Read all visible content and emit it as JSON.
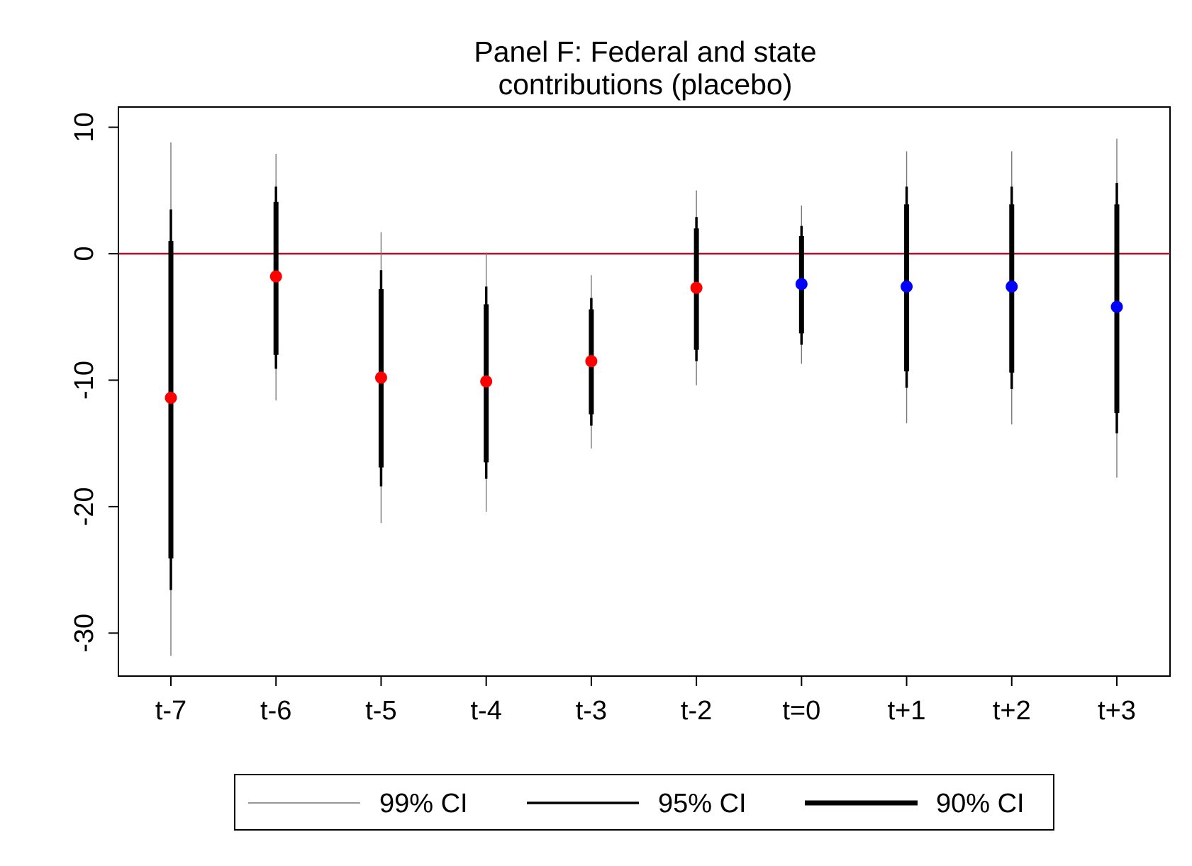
{
  "chart_data": {
    "type": "scatter",
    "title_lines": [
      "Panel F: Federal and state",
      "contributions (placebo)"
    ],
    "xlabel": "",
    "ylabel": "",
    "categories": [
      "t-7",
      "t-6",
      "t-5",
      "t-4",
      "t-3",
      "t-2",
      "t=0",
      "t+1",
      "t+2",
      "t+3"
    ],
    "estimates": [
      -11.4,
      -1.8,
      -9.8,
      -10.1,
      -8.5,
      -2.7,
      -2.4,
      -2.6,
      -2.6,
      -4.2
    ],
    "ci99": [
      [
        -31.8,
        8.8
      ],
      [
        -11.6,
        7.9
      ],
      [
        -21.3,
        1.7
      ],
      [
        -20.4,
        0.1
      ],
      [
        -15.4,
        -1.7
      ],
      [
        -10.4,
        5.0
      ],
      [
        -8.7,
        3.8
      ],
      [
        -13.4,
        8.1
      ],
      [
        -13.5,
        8.1
      ],
      [
        -17.7,
        9.1
      ]
    ],
    "ci95": [
      [
        -26.6,
        3.5
      ],
      [
        -9.1,
        5.3
      ],
      [
        -18.4,
        -1.3
      ],
      [
        -17.8,
        -2.6
      ],
      [
        -13.6,
        -3.5
      ],
      [
        -8.5,
        2.9
      ],
      [
        -7.2,
        2.2
      ],
      [
        -10.6,
        5.3
      ],
      [
        -10.7,
        5.3
      ],
      [
        -14.2,
        5.6
      ]
    ],
    "ci90": [
      [
        -24.1,
        1.0
      ],
      [
        -8.0,
        4.1
      ],
      [
        -16.9,
        -2.8
      ],
      [
        -16.5,
        -4.0
      ],
      [
        -12.7,
        -4.4
      ],
      [
        -7.6,
        2.0
      ],
      [
        -6.3,
        1.4
      ],
      [
        -9.3,
        3.9
      ],
      [
        -9.4,
        3.9
      ],
      [
        -12.6,
        3.9
      ]
    ],
    "point_colors": [
      "#ff0000",
      "#ff0000",
      "#ff0000",
      "#ff0000",
      "#ff0000",
      "#ff0000",
      "#0000ff",
      "#0000ff",
      "#0000ff",
      "#0000ff"
    ],
    "y_ticks": [
      10,
      0,
      -10,
      -20,
      -30
    ],
    "ylim": [
      -33.4,
      11.6
    ],
    "reference_line": {
      "y": 0,
      "color": "#b0102e"
    },
    "grid": false,
    "legend": {
      "position": "bottom",
      "entries": [
        {
          "label": "99% CI"
        },
        {
          "label": "95% CI"
        },
        {
          "label": "90% CI"
        }
      ]
    }
  }
}
